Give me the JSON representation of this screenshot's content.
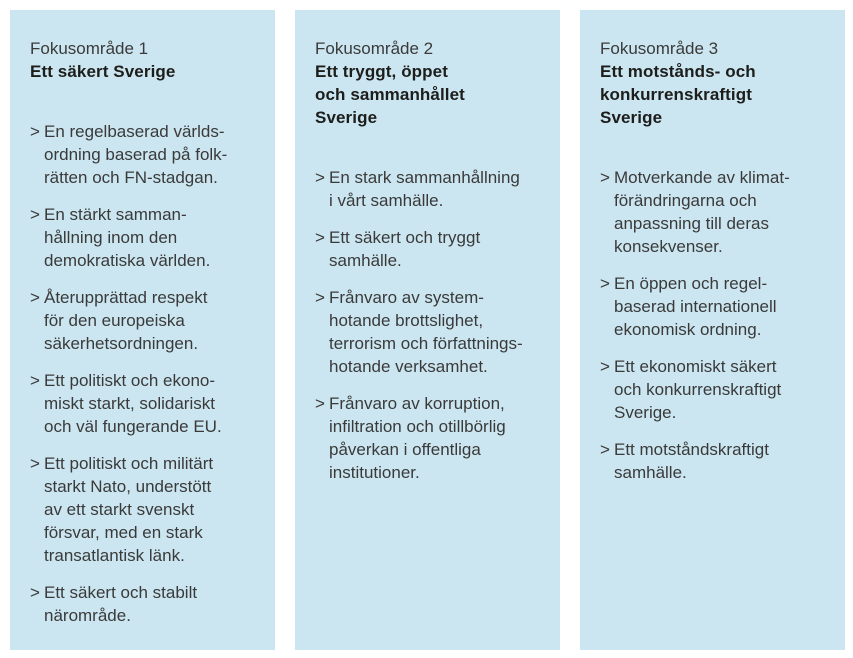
{
  "ui": {
    "bullet_char": ">"
  },
  "colors": {
    "page_bg": "#ffffff",
    "panel_bg": "#cbe6f0",
    "body_text": "#3a3a3a",
    "title_text": "#1d1d1b"
  },
  "panels": [
    {
      "label": "Fokusområde 1",
      "title": "Ett säkert Sverige",
      "bullets": [
        "En regelbaserad världs-\nordning baserad på folk-\nrätten och FN-stadgan.",
        "En stärkt samman-\nhållning inom den\ndemokratiska världen.",
        "Återupprättad respekt\nför den europeiska\nsäkerhetsordningen.",
        "Ett politiskt och ekono-\nmiskt starkt, solidariskt\noch väl fungerande EU.",
        "Ett politiskt och militärt\nstarkt Nato, understött\nav ett starkt svenskt\nförsvar, med en stark\ntransatlantisk länk.",
        "Ett säkert och stabilt\nnärområde."
      ]
    },
    {
      "label": "Fokusområde 2",
      "title": "Ett tryggt, öppet\noch sammanhållet\nSverige",
      "bullets": [
        "En stark sammanhållning\ni vårt samhälle.",
        "Ett säkert och tryggt\nsamhälle.",
        "Frånvaro av system-\nhotande brottslighet,\nterrorism och författnings-\nhotande verksamhet.",
        "Frånvaro av korruption,\ninfiltration och otillbörlig\npåverkan i offentliga\ninstitutioner."
      ]
    },
    {
      "label": "Fokusområde 3",
      "title": "Ett motstånds- och\nkonkurrenskraftigt\nSverige",
      "bullets": [
        "Motverkande av klimat-\nförändringarna och\nanpassning till deras\nkonsekvenser.",
        "En öppen och regel-\nbaserad internationell\nekonomisk ordning.",
        "Ett ekonomiskt säkert\noch konkurrenskraftigt\nSverige.",
        "Ett motståndskraftigt\nsamhälle."
      ]
    }
  ]
}
